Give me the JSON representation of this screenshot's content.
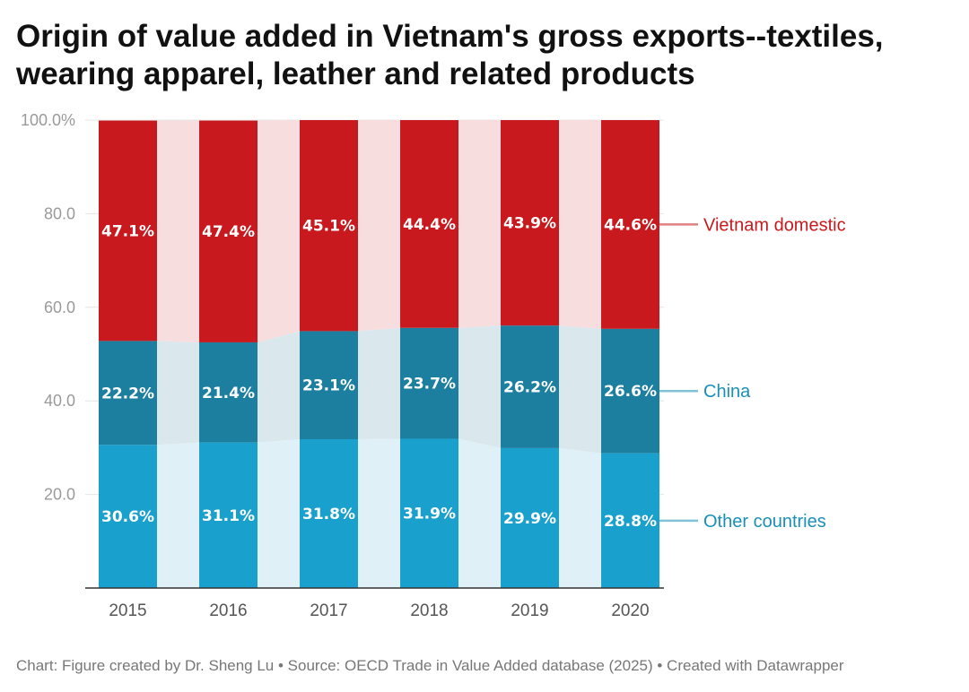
{
  "title": "Origin of value added in Vietnam's gross exports--textiles, wearing apparel, leather and related products",
  "footer": {
    "text": "Chart: Figure created by Dr. Sheng Lu • Source: OECD Trade in Value Added database (2025) • Created with Datawrapper"
  },
  "chart_data": {
    "type": "bar",
    "stacked": true,
    "title": "Origin of value added in Vietnam's gross exports--textiles, wearing apparel, leather and related products",
    "xlabel": "",
    "ylabel": "",
    "ylim": [
      0,
      100
    ],
    "y_ticks": [
      {
        "value": 20,
        "label": "20.0"
      },
      {
        "value": 40,
        "label": "40.0"
      },
      {
        "value": 60,
        "label": "60.0"
      },
      {
        "value": 80,
        "label": "80.0"
      },
      {
        "value": 100,
        "label": "100.0%"
      }
    ],
    "categories": [
      "2015",
      "2016",
      "2017",
      "2018",
      "2019",
      "2020"
    ],
    "series": [
      {
        "name": "Other countries",
        "key": "other",
        "color": "#1aa0cc",
        "band_color": "#dff0f7",
        "label_color": "#1a8fb8",
        "values": [
          30.6,
          31.1,
          31.8,
          31.9,
          29.9,
          28.8
        ],
        "labels": [
          "30.6%",
          "31.1%",
          "31.8%",
          "31.9%",
          "29.9%",
          "28.8%"
        ]
      },
      {
        "name": "China",
        "key": "china",
        "color": "#1d7fa0",
        "band_color": "#dae8ed",
        "label_color": "#1a8fb8",
        "values": [
          22.2,
          21.4,
          23.1,
          23.7,
          26.2,
          26.6
        ],
        "labels": [
          "22.2%",
          "21.4%",
          "23.1%",
          "23.7%",
          "26.2%",
          "26.6%"
        ]
      },
      {
        "name": "Vietnam domestic",
        "key": "vietnam",
        "color": "#c8191e",
        "band_color": "#f8dddf",
        "label_color": "#c8191e",
        "values": [
          47.1,
          47.4,
          45.1,
          44.4,
          43.9,
          44.6
        ],
        "labels": [
          "47.1%",
          "47.4%",
          "45.1%",
          "44.4%",
          "43.9%",
          "44.6%"
        ]
      }
    ],
    "legend": "right-inline"
  }
}
